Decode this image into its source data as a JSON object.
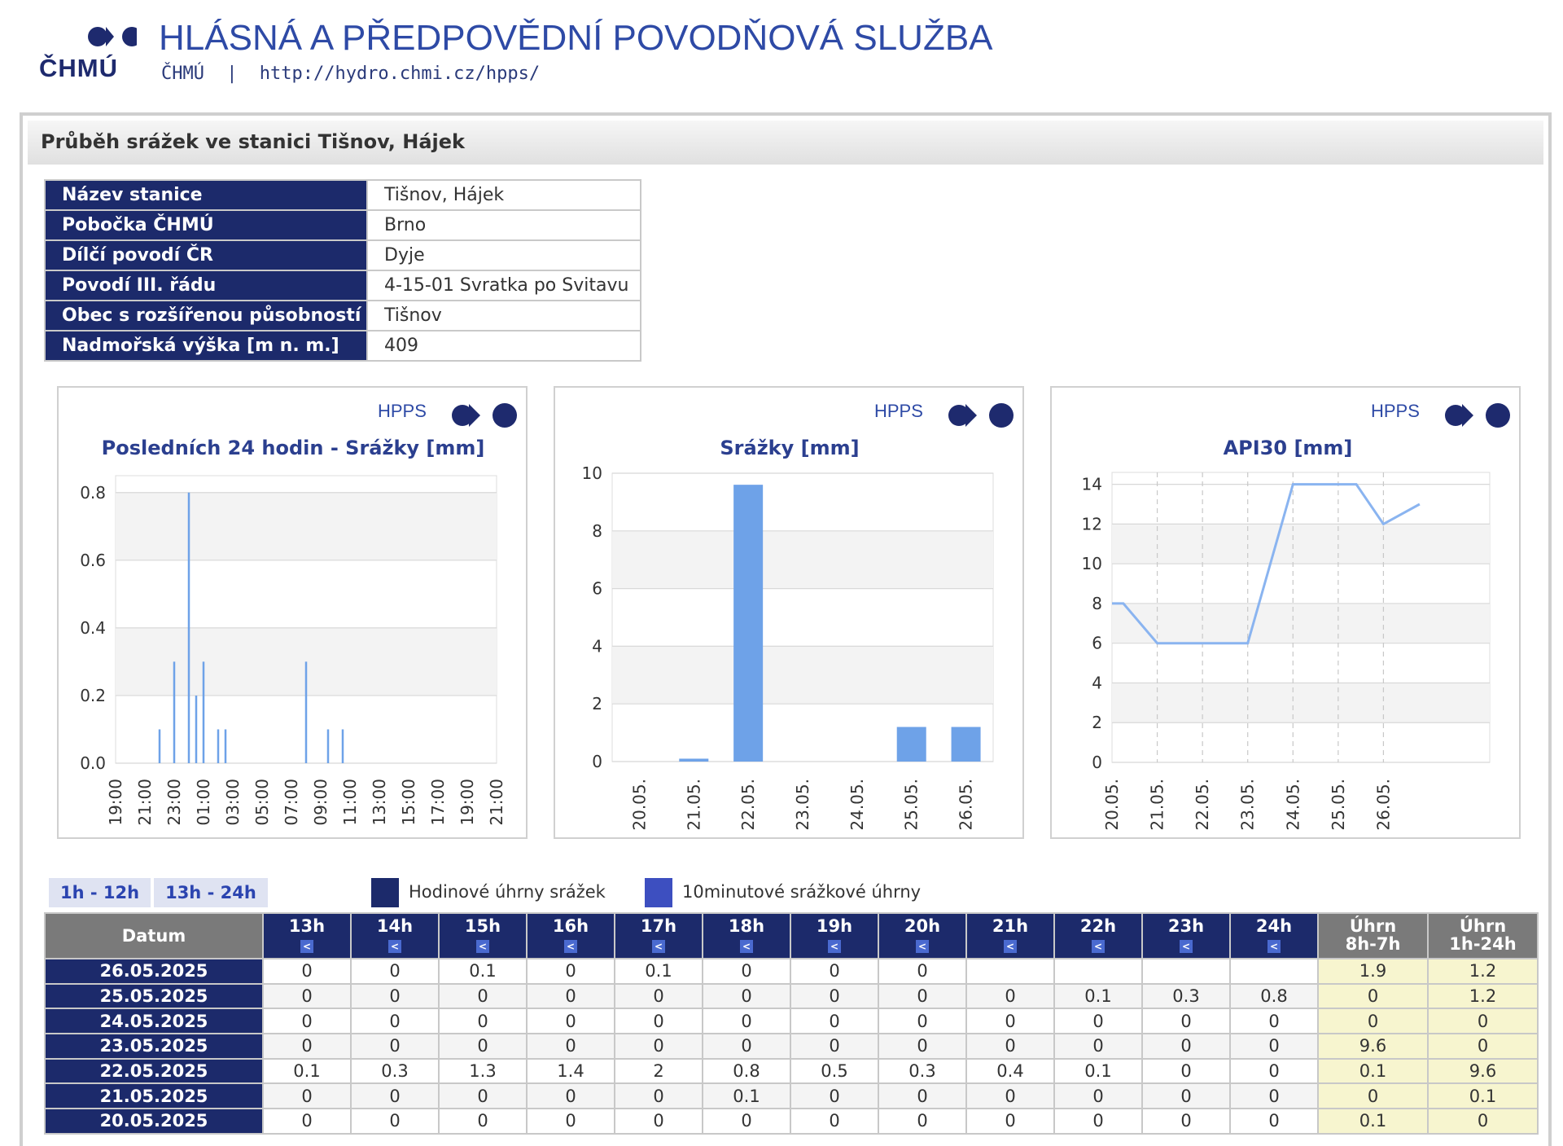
{
  "header": {
    "logo_text": "ČHMÚ",
    "service_title": "HLÁSNÁ A PŘEDPOVĚDNÍ POVODŇOVÁ SLUŽBA",
    "sub_org": "ČHMÚ",
    "separator": "|",
    "url": "http://hydro.chmi.cz/hpps/"
  },
  "panel": {
    "title": "Průběh srážek ve stanici Tišnov, Hájek"
  },
  "station_info": [
    {
      "label": "Název stanice",
      "value": "Tišnov, Hájek"
    },
    {
      "label": "Pobočka ČHMÚ",
      "value": "Brno"
    },
    {
      "label": "Dílčí povodí ČR",
      "value": "Dyje"
    },
    {
      "label": "Povodí III. řádu",
      "value": "4-15-01 Svratka po Svitavu"
    },
    {
      "label": "Obec s rozšířenou působností",
      "value": "Tišnov"
    },
    {
      "label": "Nadmořská výška [m n. m.]",
      "value": "409"
    }
  ],
  "chart_badge": "HPPS",
  "chart_data": [
    {
      "type": "bar",
      "title": "Posledních 24 hodin - Srážky [mm]",
      "xlabel": "",
      "ylabel": "",
      "ylim": [
        0,
        0.85
      ],
      "yticks": [
        "0.0",
        "0.2",
        "0.4",
        "0.6",
        "0.8"
      ],
      "xticks": [
        "19:00",
        "21:00",
        "23:00",
        "01:00",
        "03:00",
        "05:00",
        "07:00",
        "09:00",
        "11:00",
        "13:00",
        "15:00",
        "17:00",
        "19:00",
        "21:00"
      ],
      "x_hours_from_start": [
        3,
        4,
        5,
        5.5,
        6,
        7,
        7.5,
        13,
        14.5,
        15.5
      ],
      "values": [
        0.1,
        0.3,
        0.8,
        0.2,
        0.3,
        0.1,
        0.1,
        0.3,
        0.1,
        0.1
      ],
      "color": "#6ea2e8",
      "grid": true
    },
    {
      "type": "bar",
      "title": "Srážky [mm]",
      "xlabel": "",
      "ylabel": "",
      "ylim": [
        0,
        10
      ],
      "yticks": [
        "0",
        "2",
        "4",
        "6",
        "8",
        "10"
      ],
      "categories": [
        "20.05.",
        "21.05.",
        "22.05.",
        "23.05.",
        "24.05.",
        "25.05.",
        "26.05."
      ],
      "values": [
        0,
        0.1,
        9.6,
        0,
        0,
        1.2,
        1.2
      ],
      "color": "#6ea2e8",
      "grid": true
    },
    {
      "type": "line",
      "title": "API30 [mm]",
      "xlabel": "",
      "ylabel": "",
      "ylim": [
        0,
        14.6
      ],
      "yticks": [
        "0",
        "2",
        "4",
        "6",
        "8",
        "10",
        "12",
        "14"
      ],
      "categories": [
        "20.05.",
        "21.05.",
        "22.05.",
        "23.05.",
        "24.05.",
        "25.05.",
        "26.05."
      ],
      "x": [
        0,
        0.25,
        1,
        2,
        2.3,
        3,
        4,
        4.7,
        5,
        5.4,
        6,
        6.8
      ],
      "y": [
        8,
        8,
        6,
        6,
        6,
        6,
        14,
        14,
        14,
        14,
        12,
        13
      ],
      "color": "#8ab4f0",
      "grid": true
    }
  ],
  "range_tabs": [
    "1h - 12h",
    "13h - 24h"
  ],
  "legend": [
    {
      "label": "Hodinové úhrny srážek",
      "color": "#1c2a6b"
    },
    {
      "label": "10minutové srážkové úhrny",
      "color": "#3d4fc0"
    }
  ],
  "table": {
    "date_header": "Datum",
    "hours": [
      "13h",
      "14h",
      "15h",
      "16h",
      "17h",
      "18h",
      "19h",
      "20h",
      "21h",
      "22h",
      "23h",
      "24h"
    ],
    "arrow": "<",
    "sum_headers": [
      [
        "Úhrn",
        "8h-7h"
      ],
      [
        "Úhrn",
        "1h-24h"
      ]
    ],
    "rows": [
      {
        "date": "26.05.2025",
        "values": [
          "0",
          "0",
          "0.1",
          "0",
          "0.1",
          "0",
          "0",
          "0",
          "",
          "",
          "",
          ""
        ],
        "sums": [
          "1.9",
          "1.2"
        ]
      },
      {
        "date": "25.05.2025",
        "values": [
          "0",
          "0",
          "0",
          "0",
          "0",
          "0",
          "0",
          "0",
          "0",
          "0.1",
          "0.3",
          "0.8"
        ],
        "sums": [
          "0",
          "1.2"
        ]
      },
      {
        "date": "24.05.2025",
        "values": [
          "0",
          "0",
          "0",
          "0",
          "0",
          "0",
          "0",
          "0",
          "0",
          "0",
          "0",
          "0"
        ],
        "sums": [
          "0",
          "0"
        ]
      },
      {
        "date": "23.05.2025",
        "values": [
          "0",
          "0",
          "0",
          "0",
          "0",
          "0",
          "0",
          "0",
          "0",
          "0",
          "0",
          "0"
        ],
        "sums": [
          "9.6",
          "0"
        ]
      },
      {
        "date": "22.05.2025",
        "values": [
          "0.1",
          "0.3",
          "1.3",
          "1.4",
          "2",
          "0.8",
          "0.5",
          "0.3",
          "0.4",
          "0.1",
          "0",
          "0"
        ],
        "sums": [
          "0.1",
          "9.6"
        ]
      },
      {
        "date": "21.05.2025",
        "values": [
          "0",
          "0",
          "0",
          "0",
          "0",
          "0.1",
          "0",
          "0",
          "0",
          "0",
          "0",
          "0"
        ],
        "sums": [
          "0",
          "0.1"
        ]
      },
      {
        "date": "20.05.2025",
        "values": [
          "0",
          "0",
          "0",
          "0",
          "0",
          "0",
          "0",
          "0",
          "0",
          "0",
          "0",
          "0"
        ],
        "sums": [
          "0.1",
          "0"
        ]
      }
    ]
  }
}
